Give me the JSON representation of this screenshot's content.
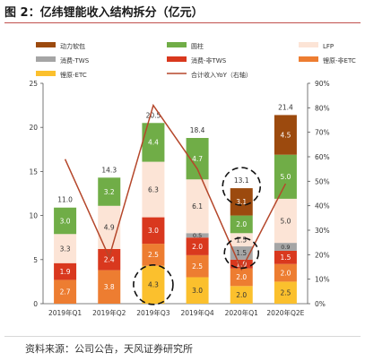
{
  "title": "图 2：亿纬锂能收入结构拆分（亿元）",
  "source": "资料来源：公司公告，天风证券研究所",
  "chart_data": {
    "type": "bar",
    "stacked": true,
    "categories": [
      "2019年Q1",
      "2019年Q2",
      "2019年Q3",
      "2019年Q4",
      "2020年Q1",
      "2020年Q2E"
    ],
    "series": [
      {
        "name": "锂原-ETC",
        "color": "#fbc02d",
        "values": [
          0,
          0,
          4.3,
          3.0,
          2.0,
          2.5
        ]
      },
      {
        "name": "锂原-非ETC",
        "color": "#ed7d31",
        "values": [
          2.7,
          3.8,
          2.5,
          2.5,
          2.0,
          2.0
        ]
      },
      {
        "name": "消费-非TWS",
        "color": "#d9381e",
        "values": [
          1.9,
          2.4,
          3.0,
          2.0,
          1.0,
          1.5
        ]
      },
      {
        "name": "消费-TWS",
        "color": "#a5a5a5",
        "values": [
          0,
          0,
          0,
          0.5,
          1.5,
          0.9
        ]
      },
      {
        "name": "LFP",
        "color": "#fce4d6",
        "values": [
          3.3,
          4.9,
          6.3,
          6.1,
          1.5,
          5.0
        ]
      },
      {
        "name": "圆柱",
        "color": "#70ad47",
        "values": [
          3.0,
          3.2,
          4.4,
          4.7,
          2.0,
          5.0
        ]
      },
      {
        "name": "动力软包",
        "color": "#9c4a0e",
        "values": [
          0,
          0,
          0,
          0,
          3.1,
          4.5
        ]
      }
    ],
    "totals": [
      "11.0",
      "14.3",
      "20.5",
      "18.4",
      "13.1",
      "21.4"
    ],
    "line_series": {
      "name": "合计收入YoY（右轴）",
      "color": "#b5472b",
      "values": [
        59,
        19,
        81,
        55,
        14,
        49
      ]
    },
    "legend_order": [
      "动力软包",
      "圆柱",
      "LFP",
      "消费-TWS",
      "消费-非TWS",
      "锂原-非ETC",
      "锂原-ETC"
    ],
    "y_left": {
      "min": 0,
      "max": 25,
      "ticks": [
        "0",
        "5",
        "10",
        "15",
        "20",
        "25"
      ]
    },
    "y_right": {
      "min": 0,
      "max": 90,
      "ticks": [
        "0%",
        "10%",
        "20%",
        "30%",
        "40%",
        "50%",
        "60%",
        "70%",
        "80%",
        "90%"
      ]
    },
    "grid": false,
    "legend_position": "top",
    "circled": [
      "2019年Q3 锂原-ETC",
      "2020年Q1 total"
    ]
  }
}
